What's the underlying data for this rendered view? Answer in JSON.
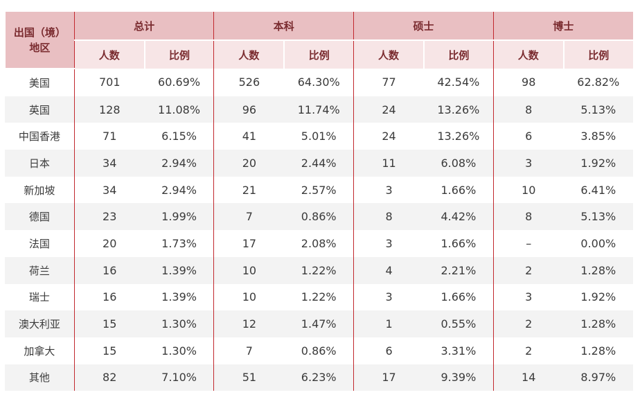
{
  "header": {
    "region_line1": "出国（境）",
    "region_line2": "地区",
    "groups": [
      "总计",
      "本科",
      "硕士",
      "博士"
    ],
    "count_label": "人数",
    "ratio_label": "比例"
  },
  "rows": [
    {
      "region": "美国",
      "cells": [
        "701",
        "60.69%",
        "526",
        "64.30%",
        "77",
        "42.54%",
        "98",
        "62.82%"
      ]
    },
    {
      "region": "英国",
      "cells": [
        "128",
        "11.08%",
        "96",
        "11.74%",
        "24",
        "13.26%",
        "8",
        "5.13%"
      ]
    },
    {
      "region": "中国香港",
      "cells": [
        "71",
        "6.15%",
        "41",
        "5.01%",
        "24",
        "13.26%",
        "6",
        "3.85%"
      ]
    },
    {
      "region": "日本",
      "cells": [
        "34",
        "2.94%",
        "20",
        "2.44%",
        "11",
        "6.08%",
        "3",
        "1.92%"
      ]
    },
    {
      "region": "新加坡",
      "cells": [
        "34",
        "2.94%",
        "21",
        "2.57%",
        "3",
        "1.66%",
        "10",
        "6.41%"
      ]
    },
    {
      "region": "德国",
      "cells": [
        "23",
        "1.99%",
        "7",
        "0.86%",
        "8",
        "4.42%",
        "8",
        "5.13%"
      ]
    },
    {
      "region": "法国",
      "cells": [
        "20",
        "1.73%",
        "17",
        "2.08%",
        "3",
        "1.66%",
        "–",
        "0.00%"
      ]
    },
    {
      "region": "荷兰",
      "cells": [
        "16",
        "1.39%",
        "10",
        "1.22%",
        "4",
        "2.21%",
        "2",
        "1.28%"
      ]
    },
    {
      "region": "瑞士",
      "cells": [
        "16",
        "1.39%",
        "10",
        "1.22%",
        "3",
        "1.66%",
        "3",
        "1.92%"
      ]
    },
    {
      "region": "澳大利亚",
      "cells": [
        "15",
        "1.30%",
        "12",
        "1.47%",
        "1",
        "0.55%",
        "2",
        "1.28%"
      ]
    },
    {
      "region": "加拿大",
      "cells": [
        "15",
        "1.30%",
        "7",
        "0.86%",
        "6",
        "3.31%",
        "2",
        "1.28%"
      ]
    },
    {
      "region": "其他",
      "cells": [
        "82",
        "7.10%",
        "51",
        "6.23%",
        "17",
        "9.39%",
        "14",
        "8.97%"
      ]
    }
  ],
  "colors": {
    "header_dark": "#e9bfc2",
    "header_light": "#f7e5e6",
    "header_text": "#7a2b2f",
    "rule": "#c1272d",
    "stripe": "#f3f3f3"
  }
}
